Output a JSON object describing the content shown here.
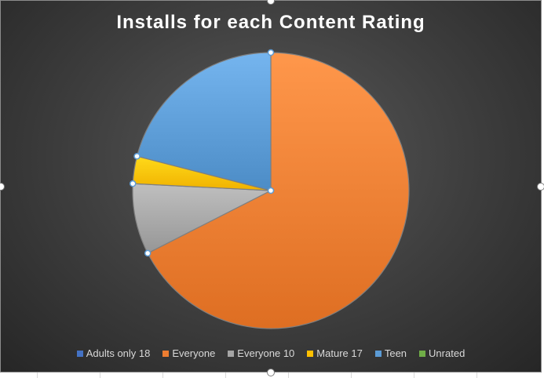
{
  "chart_data": {
    "type": "pie",
    "title": "Installs for each Content Rating",
    "categories": [
      "Adults only 18",
      "Everyone",
      "Everyone 10",
      "Mature 17",
      "Teen",
      "Unrated"
    ],
    "values": [
      0.0,
      67.5,
      8.3,
      3.2,
      21.0,
      0.0
    ],
    "value_unit": "percent of total installs",
    "colors": [
      "#4472c4",
      "#ed7d31",
      "#a5a5a5",
      "#ffc000",
      "#5b9bd5",
      "#70ad47"
    ],
    "legend_position": "bottom",
    "start_angle_deg": 0,
    "direction": "clockwise"
  },
  "theme": {
    "title_color": "#ffffff",
    "legend_text_color": "#d9d9d9",
    "slice_border_color": "#7f7f7f",
    "selection_point_color": "#5b9bd5"
  }
}
